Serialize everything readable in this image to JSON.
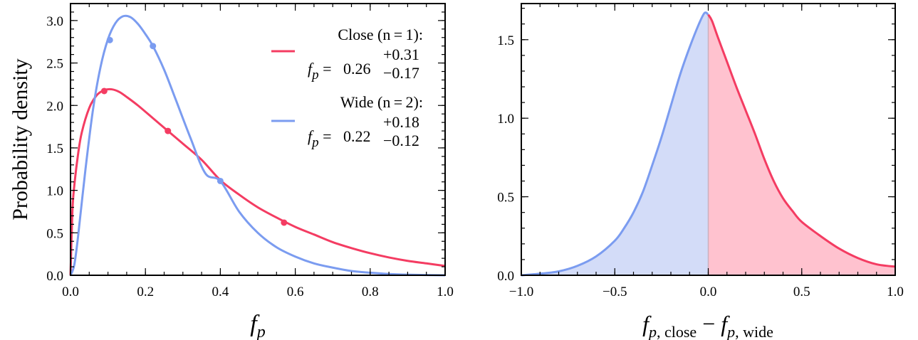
{
  "chart_data": [
    {
      "type": "line",
      "ylabel": "Probability density",
      "xlabel": "f_p",
      "xlim": [
        0.0,
        1.0
      ],
      "ylim": [
        0.0,
        3.2
      ],
      "x_ticks": [
        "0.0",
        "0.2",
        "0.4",
        "0.6",
        "0.8",
        "1.0"
      ],
      "y_ticks": [
        "0.0",
        "0.5",
        "1.0",
        "1.5",
        "2.0",
        "2.5",
        "3.0"
      ],
      "grid": false,
      "legend_position": "top-right",
      "series": [
        {
          "name": "Close (n=1)",
          "legend_title": "Close (n = 1):",
          "legend_value": "0.26",
          "legend_plus": "+0.31",
          "legend_minus": "−0.17",
          "color": "#f43c62",
          "x": [
            0.0,
            0.005,
            0.01,
            0.02,
            0.03,
            0.05,
            0.07,
            0.09,
            0.11,
            0.13,
            0.15,
            0.18,
            0.22,
            0.26,
            0.3,
            0.35,
            0.4,
            0.45,
            0.5,
            0.55,
            0.6,
            0.65,
            0.7,
            0.75,
            0.8,
            0.85,
            0.9,
            0.95,
            1.0
          ],
          "values": [
            0.0,
            0.75,
            1.05,
            1.42,
            1.68,
            1.97,
            2.12,
            2.18,
            2.19,
            2.16,
            2.1,
            2.0,
            1.85,
            1.7,
            1.55,
            1.36,
            1.12,
            0.95,
            0.8,
            0.68,
            0.57,
            0.48,
            0.39,
            0.32,
            0.26,
            0.21,
            0.17,
            0.14,
            0.11
          ],
          "markers": [
            [
              0.09,
              2.17
            ],
            [
              0.26,
              1.7
            ],
            [
              0.57,
              0.62
            ]
          ]
        },
        {
          "name": "Wide (n=2)",
          "legend_title": "Wide (n = 2):",
          "legend_value": "0.22",
          "legend_plus": "+0.18",
          "legend_minus": "−0.12",
          "color": "#7b9cf0",
          "x": [
            0.0,
            0.01,
            0.02,
            0.04,
            0.06,
            0.08,
            0.1,
            0.12,
            0.14,
            0.16,
            0.18,
            0.2,
            0.22,
            0.25,
            0.28,
            0.32,
            0.36,
            0.4,
            0.45,
            0.5,
            0.55,
            0.6,
            0.65,
            0.7,
            0.75,
            0.8,
            0.85,
            0.9,
            1.0
          ],
          "values": [
            0.0,
            0.12,
            0.45,
            1.25,
            1.95,
            2.45,
            2.78,
            2.97,
            3.05,
            3.04,
            2.96,
            2.84,
            2.7,
            2.42,
            2.08,
            1.62,
            1.2,
            1.11,
            0.75,
            0.5,
            0.33,
            0.22,
            0.14,
            0.09,
            0.05,
            0.03,
            0.015,
            0.007,
            0.0
          ],
          "markers": [
            [
              0.105,
              2.77
            ],
            [
              0.22,
              2.7
            ],
            [
              0.4,
              1.11
            ]
          ]
        }
      ]
    },
    {
      "type": "area",
      "ylabel": "",
      "xlabel": "f_p,close − f_p,wide",
      "xlim": [
        -1.0,
        1.0
      ],
      "ylim": [
        0.0,
        1.73
      ],
      "x_ticks": [
        "−1.0",
        "−0.5",
        "0.0",
        "0.5",
        "1.0"
      ],
      "y_ticks": [
        "0.0",
        "0.5",
        "1.0",
        "1.5"
      ],
      "grid": false,
      "split_at": 0.0,
      "colors": {
        "negative_line": "#7b9cf0",
        "negative_fill": "#d3dcf8",
        "positive_line": "#f43c62",
        "positive_fill": "#ffc2cf"
      },
      "x": [
        -1.0,
        -0.9,
        -0.8,
        -0.7,
        -0.6,
        -0.5,
        -0.45,
        -0.4,
        -0.35,
        -0.3,
        -0.25,
        -0.2,
        -0.15,
        -0.1,
        -0.05,
        -0.02,
        0.0,
        0.02,
        0.05,
        0.1,
        0.15,
        0.2,
        0.25,
        0.3,
        0.35,
        0.4,
        0.45,
        0.5,
        0.6,
        0.7,
        0.8,
        0.9,
        1.0
      ],
      "values": [
        0.0,
        0.01,
        0.025,
        0.06,
        0.12,
        0.22,
        0.3,
        0.4,
        0.53,
        0.7,
        0.88,
        1.08,
        1.28,
        1.45,
        1.6,
        1.67,
        1.66,
        1.62,
        1.52,
        1.36,
        1.2,
        1.05,
        0.9,
        0.74,
        0.6,
        0.49,
        0.41,
        0.34,
        0.25,
        0.17,
        0.11,
        0.07,
        0.055
      ]
    }
  ]
}
